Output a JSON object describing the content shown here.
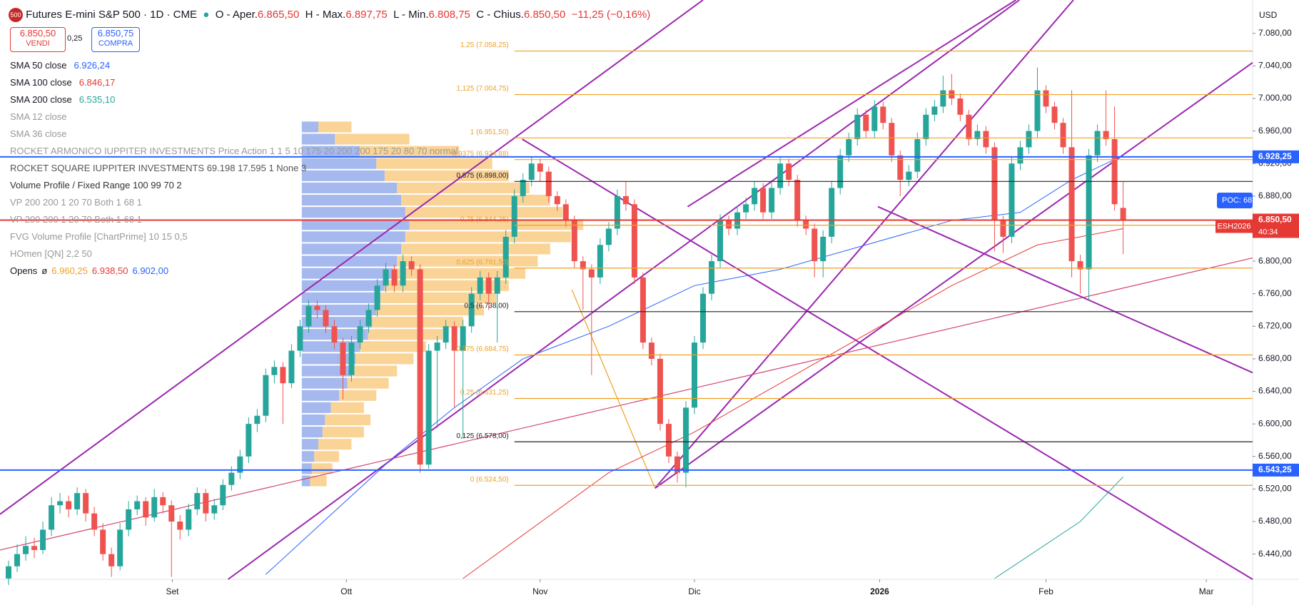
{
  "header": {
    "badge": "500",
    "title": "Futures E-mini S&P 500 · 1D · CME",
    "open_label": "O - Aper.",
    "open": "6.865,50",
    "high_label": "H - Max.",
    "high": "6.897,75",
    "low_label": "L - Min.",
    "low": "6.808,75",
    "close_label": "C - Chius.",
    "close": "6.850,50",
    "change": "−11,25 (−0,16%)",
    "sell_price": "6.850,50",
    "sell_label": "VENDI",
    "spread": "0,25",
    "buy_price": "6.850,75",
    "buy_label": "COMPRA",
    "currency": "USD",
    "indicators": [
      {
        "name": "SMA 50 close",
        "value": "6.926,24",
        "color": "#2962ff"
      },
      {
        "name": "SMA 100 close",
        "value": "6.846,17",
        "color": "#e53935"
      },
      {
        "name": "SMA 200 close",
        "value": "6.535,10",
        "color": "#26a69a"
      },
      {
        "name": "SMA 12 close",
        "color": "#999999"
      },
      {
        "name": "SMA 36 close",
        "color": "#999999"
      },
      {
        "name": "ROCKET ARMONICO IUPPITER INVESTMENTS Price Action 1 1 5 10 175 20 200 200 175 20 80 70 normal",
        "color": "#999999"
      },
      {
        "name": "ROCKET SQUARE IUPPITER INVESTMENTS 69.198 17.595 1 None 3",
        "color": "#555555"
      },
      {
        "name": "Volume Profile / Fixed Range 100 99 70 2",
        "color": "#333333"
      },
      {
        "name": "VP 200 200 1 20 70 Both 1 68 1",
        "color": "#999999"
      },
      {
        "name": "VP 200 200 1 20 70 Both 1 68 1",
        "color": "#999999"
      },
      {
        "name": "FVG Volume Profile [ChartPrime] 10 15 0,5",
        "color": "#999999"
      },
      {
        "name": "HOmen [QN] 2,2 50",
        "color": "#999999"
      }
    ],
    "opens_label": "Opens",
    "opens_symbol": "ø",
    "opens_values": [
      {
        "value": "6.960,25",
        "color": "#f0a020"
      },
      {
        "value": "6.938,50",
        "color": "#e53935"
      },
      {
        "value": "6.902,00",
        "color": "#2962ff"
      }
    ]
  },
  "chart_data": {
    "type": "candlestick",
    "up_color": "#26a69a",
    "down_color": "#ef5350",
    "ohlc": [
      [
        6410,
        6432,
        6402,
        6425
      ],
      [
        6425,
        6452,
        6418,
        6440
      ],
      [
        6440,
        6462,
        6432,
        6450
      ],
      [
        6450,
        6460,
        6435,
        6445
      ],
      [
        6445,
        6480,
        6440,
        6470
      ],
      [
        6470,
        6510,
        6462,
        6500
      ],
      [
        6500,
        6515,
        6490,
        6505
      ],
      [
        6505,
        6512,
        6485,
        6495
      ],
      [
        6495,
        6522,
        6488,
        6515
      ],
      [
        6515,
        6520,
        6480,
        6490
      ],
      [
        6490,
        6498,
        6462,
        6470
      ],
      [
        6470,
        6478,
        6432,
        6440
      ],
      [
        6440,
        6448,
        6412,
        6425
      ],
      [
        6425,
        6478,
        6420,
        6470
      ],
      [
        6470,
        6505,
        6462,
        6495
      ],
      [
        6495,
        6512,
        6488,
        6505
      ],
      [
        6505,
        6510,
        6475,
        6485
      ],
      [
        6485,
        6520,
        6480,
        6510
      ],
      [
        6510,
        6516,
        6490,
        6500
      ],
      [
        6500,
        6506,
        6412,
        6480
      ],
      [
        6480,
        6488,
        6458,
        6470
      ],
      [
        6470,
        6502,
        6462,
        6495
      ],
      [
        6495,
        6522,
        6488,
        6515
      ],
      [
        6515,
        6520,
        6480,
        6490
      ],
      [
        6490,
        6508,
        6482,
        6500
      ],
      [
        6500,
        6532,
        6494,
        6525
      ],
      [
        6525,
        6548,
        6518,
        6540
      ],
      [
        6540,
        6568,
        6532,
        6560
      ],
      [
        6560,
        6608,
        6552,
        6600
      ],
      [
        6600,
        6618,
        6590,
        6610
      ],
      [
        6610,
        6668,
        6602,
        6660
      ],
      [
        6660,
        6678,
        6650,
        6670
      ],
      [
        6670,
        6676,
        6600,
        6650
      ],
      [
        6650,
        6698,
        6644,
        6690
      ],
      [
        6690,
        6728,
        6682,
        6720
      ],
      [
        6720,
        6752,
        6712,
        6745
      ],
      [
        6745,
        6752,
        6730,
        6740
      ],
      [
        6740,
        6746,
        6712,
        6720
      ],
      [
        6720,
        6728,
        6692,
        6700
      ],
      [
        6700,
        6706,
        6630,
        6660
      ],
      [
        6660,
        6708,
        6652,
        6700
      ],
      [
        6700,
        6728,
        6692,
        6720
      ],
      [
        6720,
        6748,
        6712,
        6740
      ],
      [
        6740,
        6778,
        6732,
        6770
      ],
      [
        6770,
        6798,
        6762,
        6790
      ],
      [
        6790,
        6796,
        6762,
        6770
      ],
      [
        6770,
        6808,
        6762,
        6800
      ],
      [
        6800,
        6806,
        6782,
        6790
      ],
      [
        6790,
        6796,
        6540,
        6550
      ],
      [
        6550,
        6698,
        6545,
        6690
      ],
      [
        6690,
        6708,
        6595,
        6700
      ],
      [
        6700,
        6728,
        6692,
        6720
      ],
      [
        6720,
        6726,
        6620,
        6690
      ],
      [
        6690,
        6728,
        6582,
        6720
      ],
      [
        6720,
        6768,
        6712,
        6760
      ],
      [
        6760,
        6788,
        6752,
        6780
      ],
      [
        6780,
        6786,
        6740,
        6760
      ],
      [
        6760,
        6788,
        6700,
        6780
      ],
      [
        6780,
        6838,
        6772,
        6830
      ],
      [
        6830,
        6888,
        6822,
        6880
      ],
      [
        6880,
        6908,
        6872,
        6900
      ],
      [
        6900,
        6928,
        6892,
        6920
      ],
      [
        6920,
        6926,
        6898,
        6910
      ],
      [
        6910,
        6916,
        6872,
        6880
      ],
      [
        6880,
        6886,
        6862,
        6870
      ],
      [
        6870,
        6876,
        6842,
        6850
      ],
      [
        6850,
        6856,
        6792,
        6800
      ],
      [
        6800,
        6806,
        6740,
        6790
      ],
      [
        6790,
        6796,
        6660,
        6780
      ],
      [
        6780,
        6828,
        6772,
        6820
      ],
      [
        6820,
        6848,
        6812,
        6840
      ],
      [
        6840,
        6888,
        6832,
        6880
      ],
      [
        6880,
        6898,
        6862,
        6870
      ],
      [
        6870,
        6876,
        6772,
        6780
      ],
      [
        6780,
        6786,
        6692,
        6700
      ],
      [
        6700,
        6706,
        6672,
        6680
      ],
      [
        6680,
        6686,
        6592,
        6600
      ],
      [
        6600,
        6606,
        6552,
        6560
      ],
      [
        6560,
        6566,
        6528,
        6540
      ],
      [
        6540,
        6628,
        6522,
        6620
      ],
      [
        6620,
        6708,
        6612,
        6700
      ],
      [
        6700,
        6768,
        6692,
        6760
      ],
      [
        6760,
        6808,
        6752,
        6800
      ],
      [
        6800,
        6858,
        6792,
        6850
      ],
      [
        6850,
        6856,
        6832,
        6840
      ],
      [
        6840,
        6868,
        6832,
        6860
      ],
      [
        6860,
        6878,
        6852,
        6870
      ],
      [
        6870,
        6898,
        6862,
        6890
      ],
      [
        6890,
        6896,
        6852,
        6860
      ],
      [
        6860,
        6898,
        6852,
        6890
      ],
      [
        6890,
        6928,
        6882,
        6920
      ],
      [
        6920,
        6926,
        6892,
        6900
      ],
      [
        6900,
        6906,
        6842,
        6850
      ],
      [
        6850,
        6856,
        6832,
        6840
      ],
      [
        6840,
        6846,
        6780,
        6800
      ],
      [
        6800,
        6838,
        6780,
        6830
      ],
      [
        6830,
        6898,
        6822,
        6890
      ],
      [
        6890,
        6938,
        6882,
        6930
      ],
      [
        6930,
        6958,
        6922,
        6950
      ],
      [
        6950,
        6988,
        6942,
        6980
      ],
      [
        6980,
        6986,
        6952,
        6960
      ],
      [
        6960,
        6998,
        6952,
        6990
      ],
      [
        6990,
        6996,
        6962,
        6970
      ],
      [
        6970,
        6976,
        6922,
        6930
      ],
      [
        6930,
        6936,
        6880,
        6900
      ],
      [
        6900,
        6918,
        6892,
        6910
      ],
      [
        6910,
        6958,
        6902,
        6950
      ],
      [
        6950,
        6988,
        6942,
        6980
      ],
      [
        6980,
        6998,
        6972,
        6990
      ],
      [
        6990,
        7028,
        6982,
        7010
      ],
      [
        7010,
        7030,
        6992,
        7000
      ],
      [
        7000,
        7006,
        6972,
        6980
      ],
      [
        6980,
        6986,
        6942,
        6950
      ],
      [
        6950,
        6968,
        6942,
        6960
      ],
      [
        6960,
        6966,
        6932,
        6940
      ],
      [
        6940,
        6946,
        6812,
        6850
      ],
      [
        6850,
        6856,
        6810,
        6830
      ],
      [
        6830,
        6928,
        6822,
        6920
      ],
      [
        6920,
        6948,
        6912,
        6940
      ],
      [
        6940,
        6968,
        6932,
        6960
      ],
      [
        6960,
        7038,
        6952,
        7010
      ],
      [
        7010,
        7016,
        6982,
        6990
      ],
      [
        6990,
        6996,
        6962,
        6970
      ],
      [
        6970,
        6976,
        6932,
        6940
      ],
      [
        6940,
        7010,
        6780,
        6800
      ],
      [
        6800,
        6808,
        6760,
        6790
      ],
      [
        6790,
        6938,
        6752,
        6930
      ],
      [
        6930,
        6968,
        6922,
        6960
      ],
      [
        6960,
        7010,
        6942,
        6950
      ],
      [
        6950,
        6990,
        6862,
        6870
      ],
      [
        6865.5,
        6897.75,
        6808.75,
        6850.5
      ]
    ],
    "xlim": [
      -1,
      145.1
    ],
    "ylim": [
      6409,
      7121
    ],
    "xticks": [
      {
        "value": 19.1,
        "label": "Set"
      },
      {
        "value": 39.4,
        "label": "Ott"
      },
      {
        "value": 62,
        "label": "Nov"
      },
      {
        "value": 80,
        "label": "Dic"
      },
      {
        "value": 101.6,
        "label": "2026"
      },
      {
        "value": 121,
        "label": "Feb"
      },
      {
        "value": 139.7,
        "label": "Mar"
      }
    ],
    "yticks": [
      {
        "value": 7080,
        "label": "7.080,00"
      },
      {
        "value": 7040,
        "label": "7.040,00"
      },
      {
        "value": 7000,
        "label": "7.000,00"
      },
      {
        "value": 6960,
        "label": "6.960,00"
      },
      {
        "value": 6920,
        "label": "6.920,00"
      },
      {
        "value": 6880,
        "label": "6.880,00"
      },
      {
        "value": 6840,
        "label": "6.840,00"
      },
      {
        "value": 6800,
        "label": "6.800,00"
      },
      {
        "value": 6760,
        "label": "6.760,00"
      },
      {
        "value": 6720,
        "label": "6.720,00"
      },
      {
        "value": 6680,
        "label": "6.680,00"
      },
      {
        "value": 6640,
        "label": "6.640,00"
      },
      {
        "value": 6600,
        "label": "6.600,00"
      },
      {
        "value": 6560,
        "label": "6.560,00"
      },
      {
        "value": 6520,
        "label": "6.520,00"
      },
      {
        "value": 6480,
        "label": "6.480,00"
      },
      {
        "value": 6440,
        "label": "6.440,00"
      }
    ],
    "moving_averages": [
      {
        "color": "#2962ff",
        "x": [
          30,
          45,
          52,
          60,
          70,
          80,
          90,
          100,
          110,
          118,
          124,
          130
        ],
        "values": [
          6415,
          6560,
          6620,
          6680,
          6720,
          6770,
          6790,
          6820,
          6850,
          6860,
          6900,
          6930
        ]
      },
      {
        "color": "#e53935",
        "x": [
          53,
          70,
          80,
          90,
          100,
          110,
          120,
          130
        ],
        "values": [
          6410,
          6540,
          6590,
          6650,
          6710,
          6770,
          6820,
          6840
        ]
      },
      {
        "color": "#26a69a",
        "x": [
          115,
          125,
          130
        ],
        "values": [
          6410,
          6480,
          6535
        ]
      }
    ],
    "trendlines": [
      {
        "color": "#9c27b0",
        "x": [
          -1,
          81
        ],
        "values": [
          6489,
          7121
        ]
      },
      {
        "color": "#9c27b0",
        "x": [
          25.6,
          117.9
        ],
        "values": [
          6409,
          7121
        ]
      },
      {
        "color": "#9c27b0",
        "x": [
          75.4,
          145.1
        ],
        "values": [
          6521,
          7044
        ]
      },
      {
        "color": "#9c27b0",
        "x": [
          75.4,
          124.2
        ],
        "values": [
          6521,
          7121
        ]
      },
      {
        "color": "#9c27b0",
        "x": [
          79.2,
          117.5
        ],
        "values": [
          6867,
          7121
        ]
      },
      {
        "color": "#9c27b0",
        "x": [
          59.9,
          145.1
        ],
        "values": [
          6950,
          6409
        ]
      },
      {
        "color": "#9c27b0",
        "x": [
          101.4,
          145.1
        ],
        "values": [
          6867,
          6663
        ]
      },
      {
        "color": "#d04070",
        "x": [
          -1,
          145.1
        ],
        "values": [
          6445,
          6804
        ]
      },
      {
        "color": "#f0a020",
        "x": [
          65.7,
          75.4
        ],
        "values": [
          6765,
          6521
        ]
      }
    ],
    "fib_levels": [
      {
        "value": 7058.25,
        "label": "1,25 (7.058,25)",
        "color": "#f0a020"
      },
      {
        "value": 7004.75,
        "label": "1,125 (7.004,75)",
        "color": "#f0a020"
      },
      {
        "value": 6951.5,
        "label": "1 (6.951,50)",
        "color": "#f0a020"
      },
      {
        "value": 6924.88,
        "label": "0,9375 (6.924,88)",
        "color": "#f0a020"
      },
      {
        "value": 6898,
        "label": "0,875 (6.898,00)",
        "color": "#222222"
      },
      {
        "value": 6844.25,
        "label": "0,75 (6.844,25)",
        "color": "#f0a020"
      },
      {
        "value": 6791.5,
        "label": "0,625 (6.791,50)",
        "color": "#f0a020"
      },
      {
        "value": 6738,
        "label": "0,5 (6.738,00)",
        "color": "#222222"
      },
      {
        "value": 6684.75,
        "label": "0,375 (6.684,75)",
        "color": "#f0a020"
      },
      {
        "value": 6631.25,
        "label": "0,25 (6.631,25)",
        "color": "#f0a020"
      },
      {
        "value": 6578,
        "label": "0,125 (6.578,00)",
        "color": "#222222"
      },
      {
        "value": 6524.5,
        "label": "0 (6.524,50)",
        "color": "#f0a020"
      }
    ],
    "levels": [
      {
        "value": 6928.25,
        "label": "6.928,25",
        "color": "#2962ff"
      },
      {
        "value": 6543.25,
        "label": "6.543,25",
        "color": "#2962ff"
      },
      {
        "value": 6850.5,
        "label": "6.850,50",
        "color": "#e53935"
      }
    ],
    "symbol_tag": "ESH2026",
    "countdown": "40:34",
    "poc_label": "POC: 68",
    "volume_profile": {
      "up_color": "#5b7fe0",
      "down_color": "#f5b042",
      "prices": [
        6530,
        6545,
        6560,
        6575,
        6590,
        6605,
        6620,
        6635,
        6650,
        6665,
        6680,
        6695,
        6710,
        6725,
        6740,
        6755,
        6770,
        6785,
        6800,
        6815,
        6830,
        6845,
        6860,
        6875,
        6890,
        6905,
        6920,
        6935,
        6950,
        6965
      ],
      "up": [
        10,
        12,
        15,
        20,
        25,
        28,
        35,
        45,
        55,
        60,
        65,
        70,
        80,
        85,
        90,
        95,
        100,
        110,
        115,
        120,
        125,
        130,
        125,
        120,
        115,
        100,
        90,
        70,
        40,
        20
      ],
      "down": [
        20,
        25,
        30,
        40,
        50,
        55,
        40,
        45,
        50,
        55,
        70,
        80,
        90,
        110,
        130,
        140,
        150,
        160,
        170,
        180,
        200,
        210,
        190,
        180,
        160,
        150,
        140,
        120,
        90,
        40
      ]
    }
  }
}
